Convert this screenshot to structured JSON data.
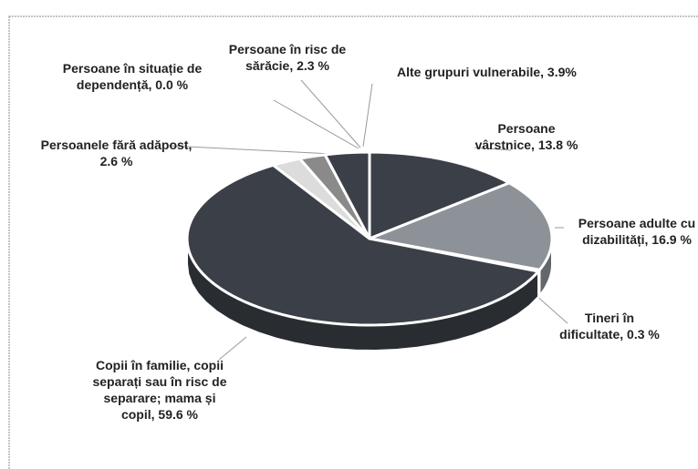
{
  "chart_data": {
    "type": "pie",
    "labels": [
      "Persoane vârstnice, 13.8 %",
      "Persoane adulte cu dizabilități, 16.9 %",
      "Tineri în dificultate, 0.3 %",
      "Copii în familie, copii separați sau în risc de separare; mama și copil, 59.6 %",
      "Persoanele fără adăpost, 2.6 %",
      "Persoane în situație de dependență, 0.0 %",
      "Persoane în risc de sărăcie, 2.3 %",
      "Alte grupuri vulnerabile, 3.9%"
    ],
    "values": [
      13.8,
      16.9,
      0.3,
      59.6,
      2.6,
      0.0,
      2.3,
      3.9
    ],
    "colors": [
      "#3b4048",
      "#8d9298",
      "#3b4048",
      "#3b4048",
      "#dcdcdc",
      "#3b4048",
      "#8a8a8a",
      "#3b4048"
    ]
  }
}
